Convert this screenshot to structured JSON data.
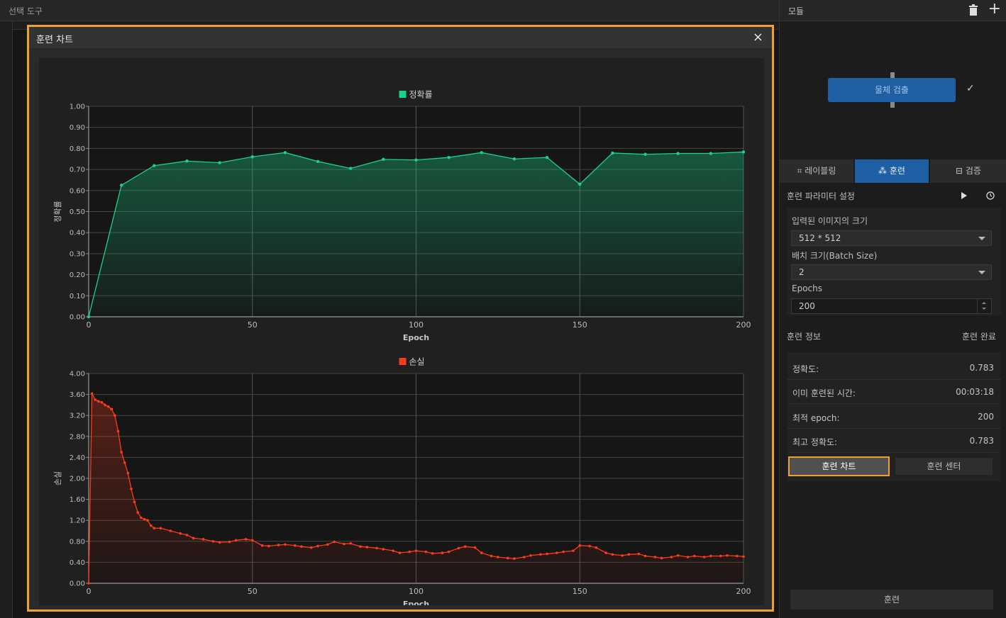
{
  "left_panel": {
    "title": "선택 도구"
  },
  "modal": {
    "title": "훈련 차트",
    "close": "×"
  },
  "chart_data": [
    {
      "type": "area",
      "legend": "정확률",
      "color": "#1ad28a",
      "xlabel": "Epoch",
      "ylabel": "정확률",
      "xlim": [
        0,
        200
      ],
      "ylim": [
        0,
        1
      ],
      "xticks": [
        0,
        50,
        100,
        150,
        200
      ],
      "yticks": [
        "0.00",
        "0.10",
        "0.20",
        "0.30",
        "0.40",
        "0.50",
        "0.60",
        "0.70",
        "0.80",
        "0.90",
        "1.00"
      ],
      "x": [
        0,
        10,
        20,
        30,
        40,
        50,
        60,
        70,
        80,
        90,
        100,
        110,
        120,
        130,
        140,
        150,
        160,
        170,
        180,
        190,
        200
      ],
      "y": [
        0.0,
        0.625,
        0.718,
        0.74,
        0.732,
        0.76,
        0.78,
        0.738,
        0.705,
        0.748,
        0.745,
        0.757,
        0.78,
        0.75,
        0.757,
        0.63,
        0.778,
        0.772,
        0.776,
        0.776,
        0.783
      ]
    },
    {
      "type": "area",
      "legend": "손실",
      "color": "#ff3a1a",
      "xlabel": "Epoch",
      "ylabel": "손실",
      "xlim": [
        0,
        200
      ],
      "ylim": [
        0,
        4
      ],
      "xticks": [
        0,
        50,
        100,
        150,
        200
      ],
      "yticks": [
        "0.00",
        "0.40",
        "0.80",
        "1.20",
        "1.60",
        "2.00",
        "2.40",
        "2.80",
        "3.20",
        "3.60",
        "4.00"
      ],
      "x": [
        0,
        1,
        2,
        3,
        4,
        5,
        6,
        7,
        8,
        9,
        10,
        11,
        12,
        13,
        14,
        15,
        16,
        17,
        18,
        19,
        20,
        22,
        25,
        28,
        30,
        32,
        35,
        38,
        40,
        43,
        45,
        48,
        50,
        53,
        55,
        58,
        60,
        63,
        65,
        68,
        70,
        73,
        75,
        78,
        80,
        83,
        85,
        88,
        90,
        93,
        95,
        98,
        100,
        103,
        105,
        108,
        110,
        113,
        115,
        118,
        120,
        123,
        125,
        128,
        130,
        133,
        135,
        138,
        140,
        143,
        145,
        148,
        150,
        153,
        155,
        158,
        160,
        163,
        165,
        168,
        170,
        173,
        175,
        178,
        180,
        183,
        185,
        188,
        190,
        193,
        195,
        198,
        200
      ],
      "y": [
        0.0,
        3.62,
        3.5,
        3.47,
        3.45,
        3.4,
        3.37,
        3.32,
        3.2,
        2.9,
        2.5,
        2.3,
        2.1,
        1.8,
        1.55,
        1.35,
        1.25,
        1.22,
        1.2,
        1.1,
        1.05,
        1.05,
        1.0,
        0.95,
        0.92,
        0.86,
        0.84,
        0.8,
        0.78,
        0.79,
        0.82,
        0.84,
        0.82,
        0.72,
        0.71,
        0.73,
        0.74,
        0.72,
        0.7,
        0.68,
        0.71,
        0.74,
        0.79,
        0.75,
        0.76,
        0.7,
        0.69,
        0.67,
        0.65,
        0.62,
        0.58,
        0.6,
        0.62,
        0.6,
        0.57,
        0.58,
        0.6,
        0.67,
        0.7,
        0.68,
        0.58,
        0.52,
        0.5,
        0.48,
        0.47,
        0.5,
        0.53,
        0.55,
        0.56,
        0.58,
        0.6,
        0.62,
        0.72,
        0.71,
        0.68,
        0.58,
        0.55,
        0.53,
        0.55,
        0.56,
        0.52,
        0.5,
        0.48,
        0.5,
        0.53,
        0.5,
        0.52,
        0.5,
        0.52,
        0.52,
        0.53,
        0.52,
        0.51
      ]
    }
  ],
  "right_panel": {
    "title": "모듈",
    "node_label": "물체 검출",
    "tabs": [
      "레이블링",
      "훈련",
      "검증"
    ],
    "param_section": "훈련 파라미터 설정",
    "fields": {
      "image_size_label": "입력된 이미지의 크기",
      "image_size_value": "512 * 512",
      "batch_label": "배치 크기(Batch Size)",
      "batch_value": "2",
      "epochs_label": "Epochs",
      "epochs_value": "200"
    },
    "info_section": "훈련 정보",
    "info_status": "훈련 완료",
    "info_rows": [
      {
        "k": "정확도:",
        "v": "0.783"
      },
      {
        "k": "이미 훈련된 시간:",
        "v": "00:03:18"
      },
      {
        "k": "최적 epoch:",
        "v": "200"
      },
      {
        "k": "최고 정확도:",
        "v": "0.783"
      }
    ],
    "btn_chart": "훈련 차트",
    "btn_center": "훈련 센터",
    "btn_train": "훈련"
  }
}
